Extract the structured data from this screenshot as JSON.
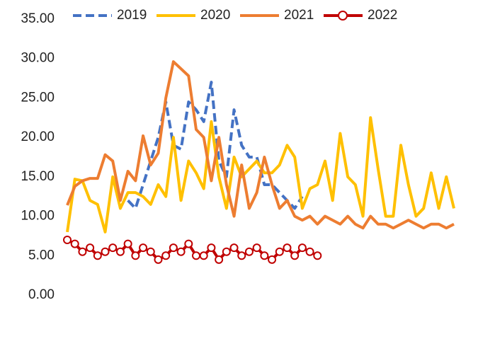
{
  "chart_data": {
    "type": "line",
    "categories": [
      null,
      null,
      null,
      null,
      null,
      null,
      null,
      null,
      null,
      null,
      null,
      null,
      null,
      null,
      null,
      null,
      null,
      null,
      null,
      null,
      null,
      null,
      null,
      null,
      null,
      null,
      null,
      null,
      null,
      null,
      null,
      null,
      null,
      null,
      null,
      null,
      null,
      null,
      null,
      null,
      null,
      null,
      null,
      null,
      null,
      null,
      null,
      null,
      null,
      null,
      null,
      null
    ],
    "series": [
      {
        "name": "2019",
        "color": "#4472c4",
        "dashed": true,
        "values": [
          null,
          null,
          null,
          null,
          null,
          null,
          null,
          null,
          12,
          11,
          14,
          17,
          20,
          24.5,
          19,
          18.5,
          24.5,
          23.5,
          22,
          27,
          17,
          15,
          23.5,
          19,
          17.5,
          17.5,
          14,
          14,
          13,
          12,
          11,
          12.5,
          null,
          null,
          null,
          null,
          null,
          null,
          null,
          null,
          null,
          null,
          null,
          null,
          null,
          null,
          null,
          null,
          null,
          null,
          null,
          null
        ]
      },
      {
        "name": "2020",
        "color": "#ffc000",
        "values": [
          8,
          14.7,
          14.5,
          12,
          11.5,
          8,
          15,
          11,
          13,
          13,
          12.5,
          11.5,
          14,
          12.5,
          20,
          12,
          17,
          15.5,
          13.5,
          22,
          15,
          11,
          17.5,
          15,
          16,
          17,
          15.5,
          15.5,
          16.5,
          19,
          17.5,
          11,
          13.5,
          14,
          17,
          12,
          20.5,
          15,
          14,
          10,
          22.5,
          16,
          10,
          10,
          19,
          14,
          10,
          11,
          15.5,
          11,
          15,
          11
        ]
      },
      {
        "name": "2021",
        "color": "#ed7d31",
        "values": [
          11.4,
          13.8,
          14.5,
          14.8,
          14.8,
          17.8,
          17,
          12,
          15.7,
          14.5,
          20.2,
          16.5,
          18,
          25,
          29.6,
          28.7,
          27.8,
          21,
          20,
          14.5,
          20,
          14,
          10,
          16.5,
          11,
          13,
          17.5,
          14,
          11,
          12,
          10,
          9.5,
          10,
          9,
          10,
          9.5,
          9,
          10,
          9,
          8.5,
          10,
          9,
          9,
          8.5,
          9,
          9.5,
          9,
          8.5,
          9,
          9,
          8.5,
          9
        ]
      },
      {
        "name": "2022",
        "color": "#c00000",
        "marker": true,
        "values": [
          7,
          6.5,
          5.5,
          6,
          5,
          5.5,
          6,
          5.5,
          6.5,
          5,
          6,
          5.5,
          4.5,
          5,
          6,
          5.5,
          6.5,
          5,
          5,
          6,
          4.5,
          5.5,
          6,
          5,
          5.5,
          6,
          5,
          4.5,
          5.5,
          6,
          5,
          6,
          5.5,
          5,
          null,
          null,
          null,
          null,
          null,
          null,
          null,
          null,
          null,
          null,
          null,
          null,
          null,
          null,
          null,
          null,
          null,
          null
        ]
      }
    ],
    "ylim": [
      0,
      35
    ],
    "yticks": [
      {
        "value": 0,
        "label": "0.00"
      },
      {
        "value": 5,
        "label": "5.00"
      },
      {
        "value": 10,
        "label": "10.00"
      },
      {
        "value": 15,
        "label": "15.00"
      },
      {
        "value": 20,
        "label": "20.00"
      },
      {
        "value": 25,
        "label": "25.00"
      },
      {
        "value": 30,
        "label": "30.00"
      },
      {
        "value": 35,
        "label": "35.00"
      }
    ],
    "legend": "top"
  }
}
